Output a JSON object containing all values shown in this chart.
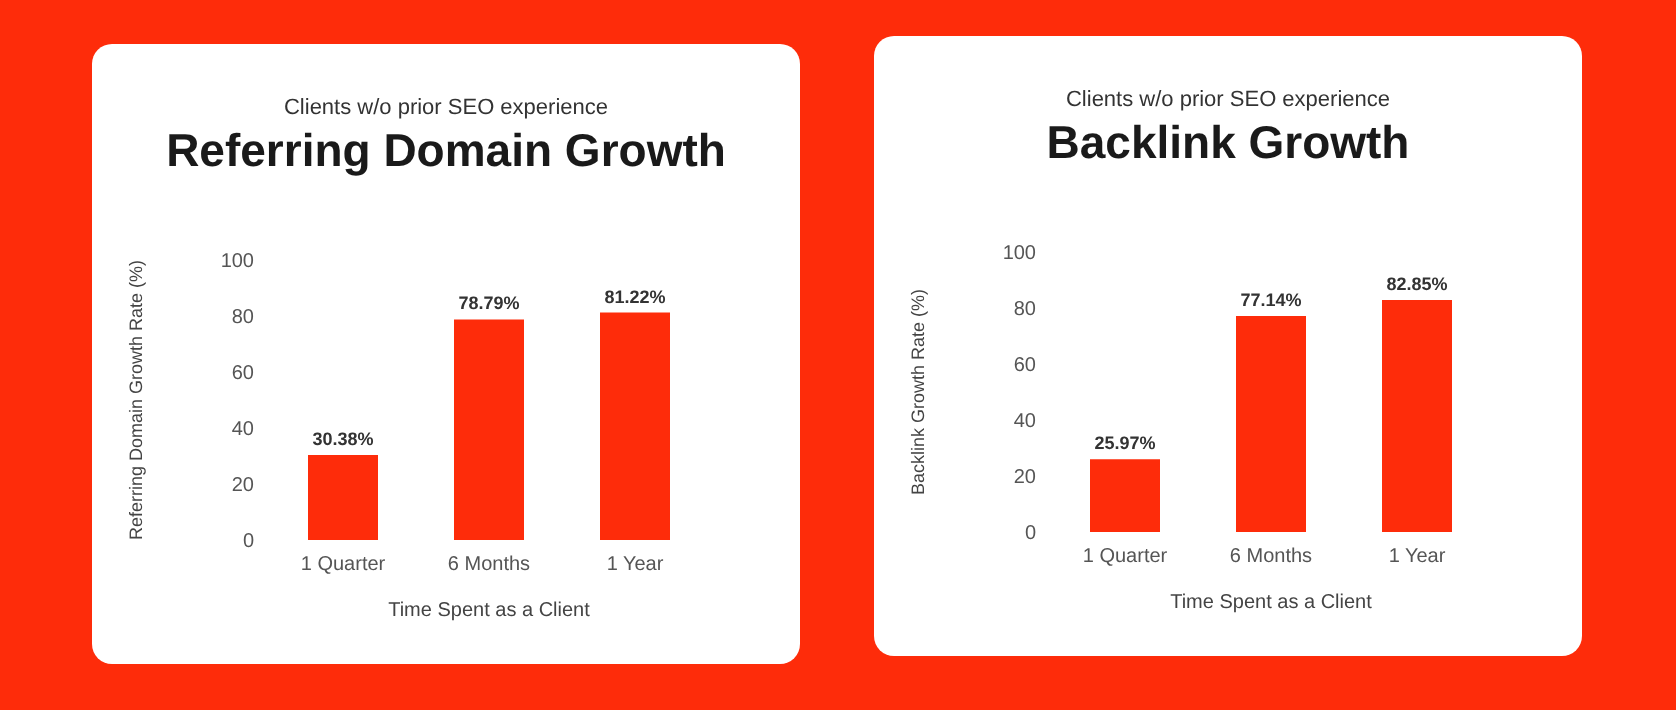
{
  "chart_data": [
    {
      "type": "bar",
      "subtitle": "Clients w/o prior SEO experience",
      "title": "Referring Domain Growth",
      "categories": [
        "1 Quarter",
        "6 Months",
        "1 Year"
      ],
      "values": [
        30.38,
        78.79,
        81.22
      ],
      "value_labels": [
        "30.38%",
        "78.79%",
        "81.22%"
      ],
      "color": "#fe2c0a",
      "xlabel": "Time Spent as a Client",
      "ylabel": "Referring Domain Growth Rate (%)",
      "ylim": [
        0,
        100
      ],
      "yticks": [
        0,
        20,
        40,
        60,
        80,
        100
      ]
    },
    {
      "type": "bar",
      "subtitle": "Clients w/o prior SEO experience",
      "title": "Backlink Growth",
      "categories": [
        "1 Quarter",
        "6 Months",
        "1 Year"
      ],
      "values": [
        25.97,
        77.14,
        82.85
      ],
      "value_labels": [
        "25.97%",
        "77.14%",
        "82.85%"
      ],
      "color": "#fe2c0a",
      "xlabel": "Time Spent as a Client",
      "ylabel": "Backlink Growth Rate (%)",
      "ylim": [
        0,
        100
      ],
      "yticks": [
        0,
        20,
        40,
        60,
        80,
        100
      ]
    }
  ]
}
